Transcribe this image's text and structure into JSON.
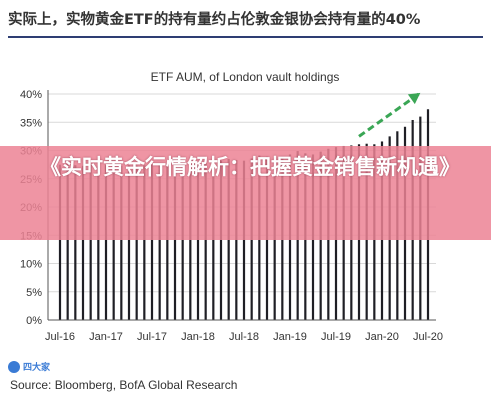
{
  "header": {
    "title": "实际上，实物黄金ETF的持有量约占伦敦金银协会持有量的40%"
  },
  "banner": {
    "text": "《实时黄金行情解析：把握黄金销售新机遇》"
  },
  "logo": {
    "text": "四大家"
  },
  "source": {
    "text": "Source: Bloomberg, BofA Global Research"
  },
  "colors": {
    "bar": "#1f1f25",
    "arrow": "#3aa655",
    "header_rule": "#2e3e73",
    "banner": "#ec8294"
  },
  "chart_data": {
    "type": "bar",
    "title": "ETF AUM, of London vault holdings",
    "xlabel": "",
    "ylabel": "",
    "ylim": [
      0,
      40
    ],
    "yticks": [
      "0%",
      "5%",
      "10%",
      "15%",
      "20%",
      "25%",
      "30%",
      "35%",
      "40%"
    ],
    "xticks": [
      "Jul-16",
      "Jan-17",
      "Jul-17",
      "Jan-18",
      "Jul-18",
      "Jan-19",
      "Jul-19",
      "Jan-20",
      "Jul-20"
    ],
    "grid": true,
    "values": [
      27.5,
      27.6,
      27.4,
      27.3,
      27.5,
      27.3,
      27.4,
      27.2,
      27.3,
      27.4,
      27.3,
      27.4,
      27.6,
      27.5,
      27.7,
      27.4,
      27.5,
      27.5,
      27.6,
      27.8,
      27.9,
      28.2,
      28.5,
      28.3,
      28.2,
      28.6,
      29.1,
      28.9,
      28.7,
      28.8,
      29.3,
      29.9,
      29.5,
      29.3,
      29.8,
      30.3,
      30.6,
      30.8,
      30.9,
      31.1,
      31.2,
      31.1,
      31.6,
      32.5,
      33.4,
      34.2,
      35.4,
      36.0,
      37.3
    ],
    "annotations": [
      {
        "type": "arrow",
        "from_index": 39,
        "from_value": 32.5,
        "to_index": 47,
        "to_value": 40.2
      }
    ]
  }
}
